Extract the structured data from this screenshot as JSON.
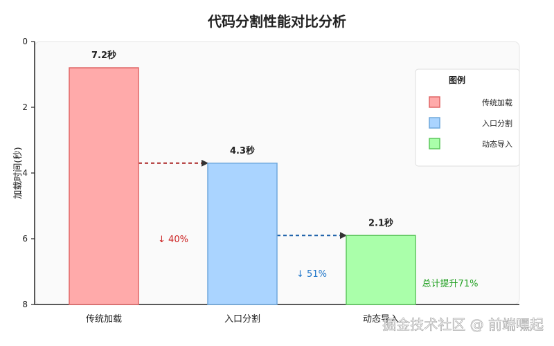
{
  "chart_data": {
    "type": "bar",
    "title": "代码分割性能对比分析",
    "ylabel": "加载时间(秒)",
    "xlabel": "",
    "ylim": [
      0,
      8
    ],
    "y_ticks": [
      "0",
      "2",
      "4",
      "6",
      "8"
    ],
    "categories": [
      "传统加载",
      "入口分割",
      "动态导入"
    ],
    "values": [
      7.2,
      4.3,
      2.1
    ],
    "value_labels": [
      "7.2秒",
      "4.3秒",
      "2.1秒"
    ],
    "bar_colors": [
      {
        "fill": "#ffaaaa",
        "stroke": "#e06666"
      },
      {
        "fill": "#aad4ff",
        "stroke": "#6fa8dc"
      },
      {
        "fill": "#aaffaa",
        "stroke": "#5cc75c"
      }
    ],
    "annotations": [
      {
        "text": "↓ 40%",
        "color": "#cc2222"
      },
      {
        "text": "↓ 51%",
        "color": "#1a73c8"
      },
      {
        "text": "总计提升71%",
        "color": "#22a022"
      }
    ],
    "arrows": [
      {
        "color": "#aa2222"
      },
      {
        "color": "#1a5fa8"
      }
    ],
    "legend": {
      "title": "图例",
      "position": "top-right",
      "items": [
        "传统加载",
        "入口分割",
        "动态导入"
      ]
    },
    "grid": false
  },
  "watermark": "掘金技术社区 @ 前端嘿起"
}
